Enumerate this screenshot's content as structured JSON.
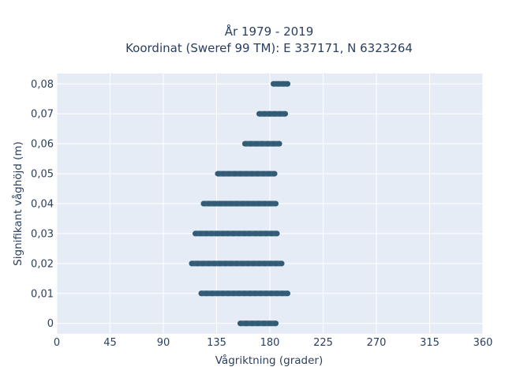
{
  "chart_data": {
    "type": "scatter",
    "title_line1": "År 1979 - 2019",
    "title_line2": "Koordinat (Sweref 99 TM): E 337171, N 6323264",
    "xlabel": "Vågriktning (grader)",
    "ylabel": "Signifikant våghöjd (m)",
    "xlim": [
      0,
      360
    ],
    "ylim": [
      -0.0035,
      0.0835
    ],
    "x_ticks": [
      0,
      45,
      90,
      135,
      180,
      225,
      270,
      315,
      360
    ],
    "x_tick_labels": [
      "0",
      "45",
      "90",
      "135",
      "180",
      "225",
      "270",
      "315",
      "360"
    ],
    "y_ticks": [
      0,
      0.01,
      0.02,
      0.03,
      0.04,
      0.05,
      0.06,
      0.07,
      0.08
    ],
    "y_tick_labels": [
      "0",
      "0,01",
      "0,02",
      "0,03",
      "0,04",
      "0,05",
      "0,06",
      "0,07",
      "0,08"
    ],
    "grid": true,
    "marker_color": "#2e5872",
    "plot_background": "#e5ecf6",
    "series": [
      {
        "bands": [
          {
            "y": 0.0,
            "x_min": 155,
            "x_max": 185
          },
          {
            "y": 0.01,
            "x_min": 122,
            "x_max": 195
          },
          {
            "y": 0.02,
            "x_min": 114,
            "x_max": 190
          },
          {
            "y": 0.03,
            "x_min": 117,
            "x_max": 186
          },
          {
            "y": 0.04,
            "x_min": 124,
            "x_max": 185
          },
          {
            "y": 0.05,
            "x_min": 136,
            "x_max": 184
          },
          {
            "y": 0.06,
            "x_min": 159,
            "x_max": 188
          },
          {
            "y": 0.07,
            "x_min": 171,
            "x_max": 193
          },
          {
            "y": 0.08,
            "x_min": 183,
            "x_max": 195
          }
        ]
      }
    ]
  }
}
